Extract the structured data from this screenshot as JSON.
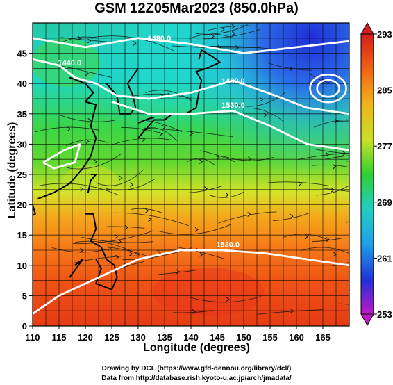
{
  "title": "GSM 12Z05Mar2023 (850.0hPa)",
  "xlabel": "Longitude (degrees)",
  "ylabel": "Latitude  (degrees)",
  "xticks": [
    "110",
    "115",
    "120",
    "125",
    "130",
    "135",
    "140",
    "145",
    "150",
    "155",
    "160",
    "165"
  ],
  "yticks": [
    "0",
    "5",
    "10",
    "15",
    "20",
    "25",
    "30",
    "35",
    "40",
    "45"
  ],
  "colorbar_ticks": [
    "293",
    "285",
    "277",
    "269",
    "261",
    "253"
  ],
  "contour_labels": [
    "1480.0",
    "1440.0",
    "1480.0",
    "1530.0",
    "1530.0"
  ],
  "credit_lines": [
    "Drawing by DCL (https://www.gfd-dennou.org/library/dcl/)",
    "Data from http://database.rish.kyoto-u.ac.jp/arch/jmadata/"
  ],
  "colors": {
    "cold": "#2b3fd8",
    "cyan": "#1fd2d2",
    "green": "#2fd23a",
    "yellow": "#f0e628",
    "orange": "#f47a16",
    "red": "#e83018",
    "contour": "#ffffff"
  },
  "chart_data": {
    "type": "heatmap",
    "title": "GSM 12Z05Mar2023 (850.0hPa)",
    "xlabel": "Longitude (degrees)",
    "ylabel": "Latitude  (degrees)",
    "xlim": [
      110,
      170
    ],
    "ylim": [
      0,
      50
    ],
    "colorbar": {
      "min": 253,
      "max": 293,
      "ticks": [
        293,
        285,
        277,
        269,
        261,
        253
      ]
    },
    "contours": [
      {
        "label": "1480.0",
        "lon": 134,
        "lat": 47
      },
      {
        "label": "1440.0",
        "lon": 117,
        "lat": 43
      },
      {
        "label": "1480.0",
        "lon": 148,
        "lat": 40
      },
      {
        "label": "1530.0",
        "lon": 148,
        "lat": 36
      },
      {
        "label": "1530.0",
        "lon": 147,
        "lat": 13
      }
    ]
  }
}
